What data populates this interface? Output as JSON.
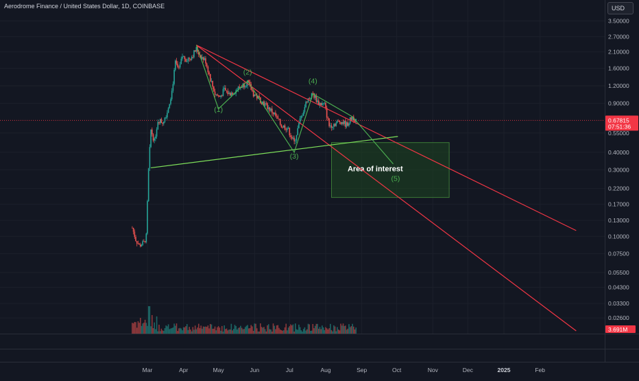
{
  "header": {
    "symbol_title": "Aerodrome Finance / United States Dollar, 1D, COINBASE",
    "currency_button": "USD"
  },
  "price_axis": {
    "ticks": [
      "3.50000",
      "2.70000",
      "2.10000",
      "1.60000",
      "1.20000",
      "0.90000",
      "0.55000",
      "0.40000",
      "0.30000",
      "0.22000",
      "0.17000",
      "0.13000",
      "0.10000",
      "0.07500",
      "0.05500",
      "0.04300",
      "0.03300",
      "0.02600"
    ],
    "last_price_label": "0.67815",
    "countdown_label": "07:51:36",
    "volume_label": "3.691M",
    "price_color": "#f23645"
  },
  "chart_data": {
    "type": "candlestick",
    "title": "Aerodrome Finance / United States Dollar, 1D, COINBASE",
    "y_scale": "log",
    "ylim": [
      0.021,
      3.6
    ],
    "x_ticks": [
      "Mar",
      "Apr",
      "May",
      "Jun",
      "Jul",
      "Aug",
      "Sep",
      "Oct",
      "Nov",
      "Dec",
      "2025",
      "Feb"
    ],
    "last_price": 0.67815,
    "price_series": [
      {
        "date": "2024-02-17",
        "price": 0.115
      },
      {
        "date": "2024-02-20",
        "price": 0.095
      },
      {
        "date": "2024-02-23",
        "price": 0.086
      },
      {
        "date": "2024-02-27",
        "price": 0.09
      },
      {
        "date": "2024-02-29",
        "price": 0.1
      },
      {
        "date": "2024-03-02",
        "price": 0.3
      },
      {
        "date": "2024-03-04",
        "price": 0.58
      },
      {
        "date": "2024-03-07",
        "price": 0.48
      },
      {
        "date": "2024-03-10",
        "price": 0.68
      },
      {
        "date": "2024-03-14",
        "price": 0.66
      },
      {
        "date": "2024-03-18",
        "price": 0.78
      },
      {
        "date": "2024-03-22",
        "price": 1.1
      },
      {
        "date": "2024-03-25",
        "price": 1.75
      },
      {
        "date": "2024-03-28",
        "price": 1.55
      },
      {
        "date": "2024-03-31",
        "price": 1.95
      },
      {
        "date": "2024-04-04",
        "price": 1.85
      },
      {
        "date": "2024-04-08",
        "price": 1.95
      },
      {
        "date": "2024-04-12",
        "price": 2.2
      },
      {
        "date": "2024-04-16",
        "price": 1.95
      },
      {
        "date": "2024-04-20",
        "price": 1.8
      },
      {
        "date": "2024-04-24",
        "price": 1.35
      },
      {
        "date": "2024-04-28",
        "price": 1.05
      },
      {
        "date": "2024-05-02",
        "price": 1.0
      },
      {
        "date": "2024-05-06",
        "price": 1.12
      },
      {
        "date": "2024-05-10",
        "price": 1.05
      },
      {
        "date": "2024-05-15",
        "price": 1.1
      },
      {
        "date": "2024-05-21",
        "price": 1.2
      },
      {
        "date": "2024-05-26",
        "price": 1.28
      },
      {
        "date": "2024-05-31",
        "price": 1.05
      },
      {
        "date": "2024-06-06",
        "price": 0.95
      },
      {
        "date": "2024-06-12",
        "price": 0.85
      },
      {
        "date": "2024-06-18",
        "price": 0.75
      },
      {
        "date": "2024-06-24",
        "price": 0.62
      },
      {
        "date": "2024-06-29",
        "price": 0.6
      },
      {
        "date": "2024-07-05",
        "price": 0.47
      },
      {
        "date": "2024-07-10",
        "price": 0.68
      },
      {
        "date": "2024-07-16",
        "price": 0.95
      },
      {
        "date": "2024-07-21",
        "price": 1.05
      },
      {
        "date": "2024-07-26",
        "price": 0.9
      },
      {
        "date": "2024-07-31",
        "price": 0.88
      },
      {
        "date": "2024-08-04",
        "price": 0.62
      },
      {
        "date": "2024-08-08",
        "price": 0.64
      },
      {
        "date": "2024-08-14",
        "price": 0.67
      },
      {
        "date": "2024-08-19",
        "price": 0.63
      },
      {
        "date": "2024-08-24",
        "price": 0.72
      },
      {
        "date": "2024-08-27",
        "price": 0.68
      }
    ],
    "wave_labels": [
      {
        "label": "(1)",
        "date": "2024-05-01",
        "price": 0.78
      },
      {
        "label": "(2)",
        "date": "2024-05-26",
        "price": 1.45
      },
      {
        "label": "(3)",
        "date": "2024-07-05",
        "price": 0.36
      },
      {
        "label": "(4)",
        "date": "2024-07-21",
        "price": 1.25
      },
      {
        "label": "(5)",
        "date": "2024-09-30",
        "price": 0.25
      }
    ],
    "annotations": [
      {
        "text": "Area of interest",
        "date_range": [
          "2024-08-06",
          "2024-11-15"
        ],
        "price_range": [
          0.19,
          0.47
        ]
      }
    ],
    "trendlines": [
      {
        "from": {
          "date": "2024-04-12",
          "price": 2.35
        },
        "to": {
          "date": "2025-03-04",
          "price": 0.11
        },
        "color": "#f23645"
      },
      {
        "from": {
          "date": "2024-04-12",
          "price": 2.35
        },
        "to": {
          "date": "2025-03-04",
          "price": 0.021
        },
        "color": "#f23645"
      },
      {
        "from": {
          "date": "2024-03-04",
          "price": 0.31
        },
        "to": {
          "date": "2024-10-02",
          "price": 0.52
        },
        "color": "#7ee05a"
      }
    ]
  },
  "colors": {
    "background": "#131722",
    "up": "#26a69a",
    "down": "#ef5350",
    "wave": "#4caf50",
    "trendline": "#f23645",
    "zone_fill": "#1e4620",
    "zone_border": "#3d7a37"
  }
}
